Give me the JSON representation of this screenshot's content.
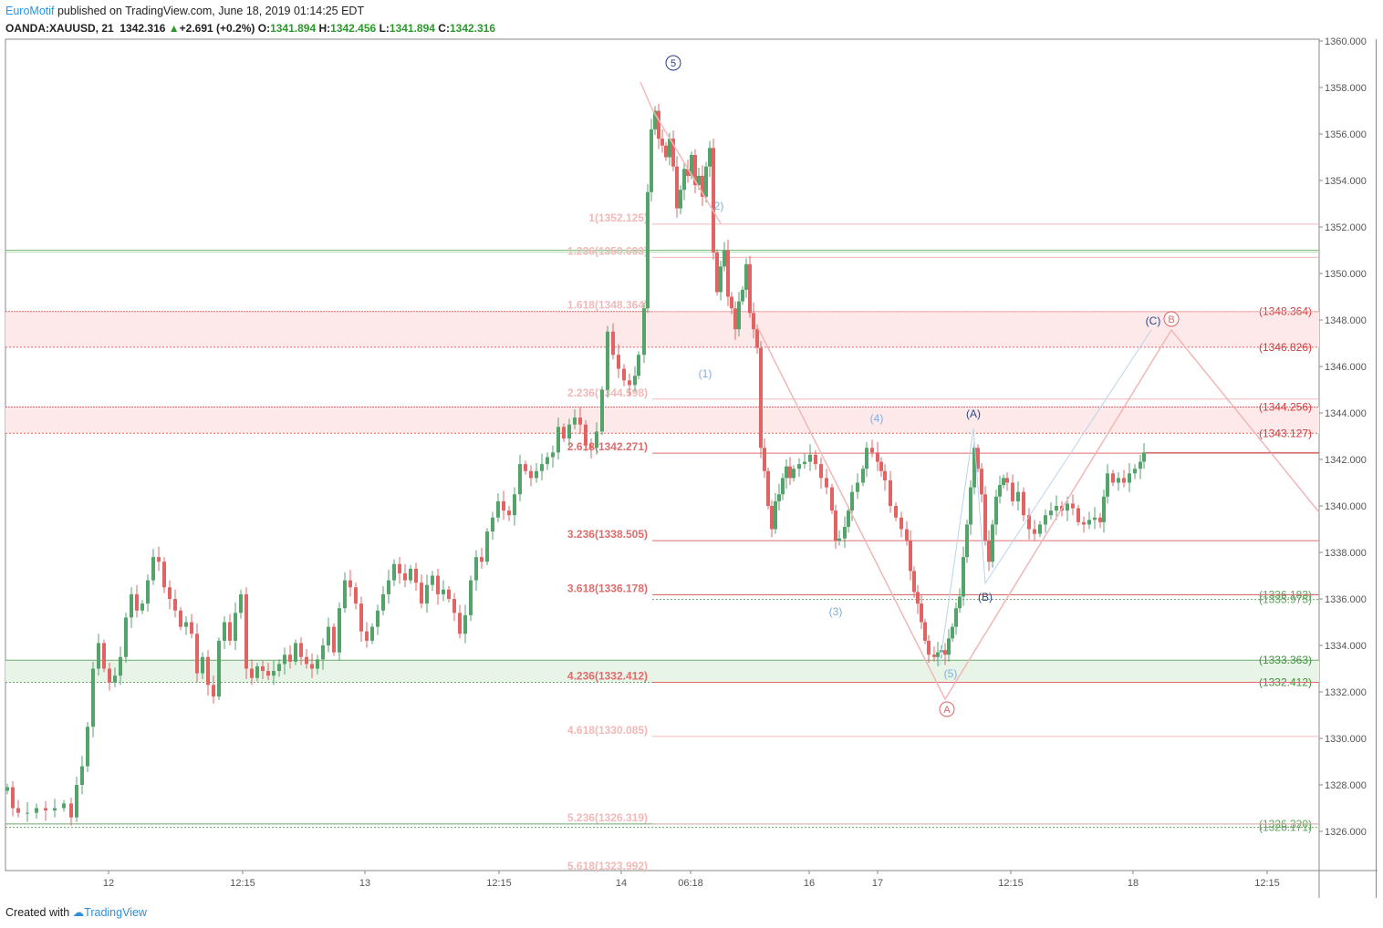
{
  "header": {
    "author": "EuroMotif",
    "published_text": "published on TradingView.com, June 18, 2019 01:14:25 EDT",
    "symbol": "OANDA:XAUUSD, 21",
    "last": "1342.316",
    "change": "+2.691 (+0.2%)",
    "o_label": "O:",
    "o_val": "1341.894",
    "h_label": "H:",
    "h_val": "1342.456",
    "l_label": "L:",
    "l_val": "1341.894",
    "c_label": "C:",
    "c_val": "1342.316"
  },
  "footer": {
    "created_with": "Created with",
    "brand": "TradingView"
  },
  "chart_data": {
    "type": "candlestick",
    "title": "",
    "y_range": [
      1323.2,
      1360.6
    ],
    "y_ticks": [
      "1360.000",
      "1358.000",
      "1356.000",
      "1354.000",
      "1352.000",
      "1350.000",
      "1348.000",
      "1346.000",
      "1344.000",
      "1342.000",
      "1340.000",
      "1338.000",
      "1336.000",
      "1334.000",
      "1332.000",
      "1330.000",
      "1328.000",
      "1326.000"
    ],
    "x_ticks": [
      "12",
      "12:15",
      "13",
      "12:15",
      "14",
      "06:18",
      "16",
      "17",
      "12:15",
      "18",
      "12:15"
    ],
    "colors": {
      "up": "#53a36b",
      "down": "#e06464",
      "fib": "#e06b6b",
      "fib_faint": "#f2b8b8",
      "support": "#6aab6a",
      "wave_light": "#7faee3",
      "wave_dark": "#2a4a8a"
    },
    "close_path": [
      [
        8,
        1327.9
      ],
      [
        14,
        1327.0
      ],
      [
        20,
        1326.8
      ],
      [
        30,
        1326.8
      ],
      [
        40,
        1327.0
      ],
      [
        50,
        1326.9
      ],
      [
        60,
        1327.0
      ],
      [
        70,
        1327.2
      ],
      [
        78,
        1326.6
      ],
      [
        84,
        1328.0
      ],
      [
        90,
        1328.8
      ],
      [
        96,
        1330.5
      ],
      [
        102,
        1333.0
      ],
      [
        108,
        1334.1
      ],
      [
        114,
        1333.0
      ],
      [
        120,
        1332.4
      ],
      [
        126,
        1332.7
      ],
      [
        132,
        1333.5
      ],
      [
        138,
        1335.2
      ],
      [
        144,
        1336.2
      ],
      [
        150,
        1335.5
      ],
      [
        156,
        1335.8
      ],
      [
        162,
        1336.8
      ],
      [
        168,
        1337.8
      ],
      [
        174,
        1337.6
      ],
      [
        180,
        1336.5
      ],
      [
        186,
        1336.0
      ],
      [
        192,
        1335.5
      ],
      [
        198,
        1334.8
      ],
      [
        204,
        1335.0
      ],
      [
        210,
        1334.5
      ],
      [
        216,
        1332.8
      ],
      [
        222,
        1333.5
      ],
      [
        228,
        1332.3
      ],
      [
        234,
        1331.8
      ],
      [
        240,
        1334.2
      ],
      [
        246,
        1335.0
      ],
      [
        252,
        1334.2
      ],
      [
        258,
        1335.4
      ],
      [
        264,
        1336.2
      ],
      [
        270,
        1333.0
      ],
      [
        276,
        1332.6
      ],
      [
        282,
        1333.1
      ],
      [
        288,
        1332.9
      ],
      [
        294,
        1332.7
      ],
      [
        300,
        1332.9
      ],
      [
        306,
        1333.2
      ],
      [
        312,
        1333.6
      ],
      [
        318,
        1333.3
      ],
      [
        324,
        1334.1
      ],
      [
        330,
        1333.5
      ],
      [
        336,
        1333.2
      ],
      [
        342,
        1333.0
      ],
      [
        348,
        1333.4
      ],
      [
        354,
        1334.0
      ],
      [
        360,
        1334.8
      ],
      [
        366,
        1333.7
      ],
      [
        372,
        1335.6
      ],
      [
        378,
        1336.8
      ],
      [
        384,
        1336.5
      ],
      [
        390,
        1335.8
      ],
      [
        396,
        1334.6
      ],
      [
        402,
        1334.2
      ],
      [
        408,
        1334.8
      ],
      [
        414,
        1335.5
      ],
      [
        420,
        1336.2
      ],
      [
        426,
        1336.8
      ],
      [
        432,
        1337.5
      ],
      [
        438,
        1337.1
      ],
      [
        444,
        1336.8
      ],
      [
        450,
        1337.3
      ],
      [
        456,
        1336.7
      ],
      [
        462,
        1335.8
      ],
      [
        468,
        1336.6
      ],
      [
        474,
        1337.0
      ],
      [
        480,
        1336.2
      ],
      [
        486,
        1336.4
      ],
      [
        492,
        1336.0
      ],
      [
        498,
        1335.4
      ],
      [
        504,
        1334.5
      ],
      [
        510,
        1335.3
      ],
      [
        516,
        1336.8
      ],
      [
        522,
        1337.8
      ],
      [
        528,
        1337.6
      ],
      [
        534,
        1338.9
      ],
      [
        540,
        1339.5
      ],
      [
        546,
        1340.2
      ],
      [
        552,
        1339.8
      ],
      [
        558,
        1339.6
      ],
      [
        564,
        1340.5
      ],
      [
        570,
        1341.8
      ],
      [
        576,
        1341.5
      ],
      [
        582,
        1341.2
      ],
      [
        588,
        1341.5
      ],
      [
        594,
        1341.8
      ],
      [
        600,
        1342.1
      ],
      [
        606,
        1342.3
      ],
      [
        612,
        1343.4
      ],
      [
        618,
        1342.9
      ],
      [
        624,
        1343.5
      ],
      [
        630,
        1343.8
      ],
      [
        636,
        1343.5
      ],
      [
        642,
        1342.6
      ],
      [
        648,
        1342.5
      ],
      [
        654,
        1343.2
      ],
      [
        660,
        1345.0
      ],
      [
        666,
        1347.5
      ],
      [
        672,
        1346.5
      ],
      [
        678,
        1345.9
      ],
      [
        684,
        1345.4
      ],
      [
        690,
        1345.2
      ],
      [
        696,
        1345.6
      ],
      [
        700,
        1346.5
      ],
      [
        706,
        1348.5
      ],
      [
        710,
        1353.5
      ],
      [
        714,
        1356.2
      ],
      [
        718,
        1357.0
      ],
      [
        722,
        1355.8
      ],
      [
        726,
        1355.5
      ],
      [
        730,
        1355.0
      ],
      [
        734,
        1355.8
      ],
      [
        738,
        1354.6
      ],
      [
        742,
        1352.8
      ],
      [
        746,
        1353.6
      ],
      [
        750,
        1354.5
      ],
      [
        754,
        1354.2
      ],
      [
        758,
        1355.1
      ],
      [
        762,
        1353.8
      ],
      [
        766,
        1354.2
      ],
      [
        770,
        1353.3
      ],
      [
        774,
        1354.6
      ],
      [
        778,
        1355.4
      ],
      [
        782,
        1350.9
      ],
      [
        786,
        1349.2
      ],
      [
        790,
        1350.3
      ],
      [
        794,
        1351.0
      ],
      [
        798,
        1349.0
      ],
      [
        802,
        1348.5
      ],
      [
        806,
        1347.6
      ],
      [
        810,
        1348.8
      ],
      [
        814,
        1349.3
      ],
      [
        818,
        1350.4
      ],
      [
        822,
        1348.3
      ],
      [
        826,
        1347.6
      ],
      [
        830,
        1346.8
      ],
      [
        834,
        1342.5
      ],
      [
        838,
        1341.5
      ],
      [
        842,
        1340.0
      ],
      [
        846,
        1339.0
      ],
      [
        850,
        1340.2
      ],
      [
        854,
        1340.5
      ],
      [
        858,
        1341.2
      ],
      [
        862,
        1341.7
      ],
      [
        866,
        1341.2
      ],
      [
        870,
        1341.6
      ],
      [
        876,
        1341.8
      ],
      [
        882,
        1341.9
      ],
      [
        888,
        1342.2
      ],
      [
        894,
        1341.8
      ],
      [
        900,
        1341.2
      ],
      [
        906,
        1340.8
      ],
      [
        912,
        1339.8
      ],
      [
        916,
        1338.5
      ],
      [
        920,
        1338.6
      ],
      [
        926,
        1339.1
      ],
      [
        930,
        1339.8
      ],
      [
        934,
        1340.6
      ],
      [
        940,
        1341.0
      ],
      [
        946,
        1341.6
      ],
      [
        950,
        1342.5
      ],
      [
        956,
        1342.3
      ],
      [
        962,
        1341.9
      ],
      [
        966,
        1341.5
      ],
      [
        970,
        1341.1
      ],
      [
        976,
        1340.0
      ],
      [
        982,
        1339.5
      ],
      [
        988,
        1339.0
      ],
      [
        994,
        1338.5
      ],
      [
        998,
        1337.2
      ],
      [
        1002,
        1336.3
      ],
      [
        1006,
        1335.8
      ],
      [
        1010,
        1335.0
      ],
      [
        1014,
        1334.2
      ],
      [
        1018,
        1333.6
      ],
      [
        1024,
        1333.5
      ],
      [
        1028,
        1333.7
      ],
      [
        1032,
        1333.8
      ],
      [
        1036,
        1333.6
      ],
      [
        1040,
        1334.3
      ],
      [
        1044,
        1334.8
      ],
      [
        1048,
        1335.6
      ],
      [
        1052,
        1336.1
      ],
      [
        1056,
        1337.8
      ],
      [
        1060,
        1339.2
      ],
      [
        1064,
        1340.8
      ],
      [
        1068,
        1342.5
      ],
      [
        1072,
        1341.6
      ],
      [
        1076,
        1340.5
      ],
      [
        1080,
        1338.5
      ],
      [
        1084,
        1337.6
      ],
      [
        1088,
        1339.2
      ],
      [
        1092,
        1340.4
      ],
      [
        1096,
        1340.9
      ],
      [
        1100,
        1341.2
      ],
      [
        1104,
        1341.0
      ],
      [
        1110,
        1340.2
      ],
      [
        1116,
        1340.6
      ],
      [
        1122,
        1339.6
      ],
      [
        1128,
        1339.0
      ],
      [
        1134,
        1338.8
      ],
      [
        1140,
        1339.2
      ],
      [
        1146,
        1339.6
      ],
      [
        1152,
        1339.8
      ],
      [
        1158,
        1340.0
      ],
      [
        1164,
        1339.8
      ],
      [
        1170,
        1340.1
      ],
      [
        1176,
        1339.9
      ],
      [
        1182,
        1339.3
      ],
      [
        1188,
        1339.2
      ],
      [
        1194,
        1339.4
      ],
      [
        1200,
        1339.5
      ],
      [
        1206,
        1339.3
      ],
      [
        1210,
        1340.4
      ],
      [
        1214,
        1341.4
      ],
      [
        1220,
        1341.0
      ],
      [
        1226,
        1341.2
      ],
      [
        1232,
        1341.0
      ],
      [
        1238,
        1341.4
      ],
      [
        1244,
        1341.6
      ],
      [
        1250,
        1341.9
      ],
      [
        1254,
        1342.3
      ]
    ],
    "fib_levels": [
      {
        "label": "1(1352.125)",
        "value": 1352.125,
        "faint": true
      },
      {
        "label": "1.236(1350.693)",
        "value": 1350.693,
        "faint": true
      },
      {
        "label": "1.618(1348.364)",
        "value": 1348.364,
        "faint": true
      },
      {
        "label": "2.236(1344.598)",
        "value": 1344.598,
        "faint": true
      },
      {
        "label": "2.618(1342.271)",
        "value": 1342.271,
        "faint": false
      },
      {
        "label": "3.236(1338.505)",
        "value": 1338.505,
        "faint": false
      },
      {
        "label": "3.618(1336.178)",
        "value": 1336.178,
        "faint": false
      },
      {
        "label": "4.236(1332.412)",
        "value": 1332.412,
        "faint": false
      },
      {
        "label": "4.618(1330.085)",
        "value": 1330.085,
        "faint": true
      },
      {
        "label": "5.236(1326.319)",
        "value": 1326.319,
        "faint": true
      },
      {
        "label": "5.618(1323.992)",
        "value": 1323.992,
        "faint": true
      }
    ],
    "zones": [
      {
        "top": 1348.364,
        "bottom": 1346.826,
        "type": "resistance",
        "labels": [
          "(1348.364)",
          "(1346.826)"
        ]
      },
      {
        "top": 1344.256,
        "bottom": 1343.127,
        "type": "resistance",
        "labels": [
          "(1344.256)",
          "(1343.127)"
        ]
      },
      {
        "top": 1333.363,
        "bottom": 1332.412,
        "type": "support",
        "labels": [
          "(1333.363)",
          "(1332.412)"
        ]
      }
    ],
    "support_lines": [
      {
        "value": 1336.183,
        "label": "(1336.183)"
      },
      {
        "value": 1335.975,
        "label": "(1335.975)"
      },
      {
        "value": 1326.32,
        "label": "(1326.320)"
      },
      {
        "value": 1326.171,
        "label": "(1326.171)"
      }
    ],
    "green_line": 1351.0,
    "wave_labels": [
      {
        "text": "5",
        "circled": true,
        "color": "#2a3a8a"
      },
      {
        "text": "2)",
        "color": "#7faee3"
      },
      {
        "text": "(1)",
        "color": "#7faee3"
      },
      {
        "text": "(4)",
        "color": "#7faee3"
      },
      {
        "text": "(3)",
        "color": "#7faee3"
      },
      {
        "text": "(5)",
        "color": "#7faee3"
      },
      {
        "text": "(A)",
        "color": "#2a4a8a"
      },
      {
        "text": "(B)",
        "color": "#2a4a8a"
      },
      {
        "text": "(C)",
        "color": "#2a4a8a"
      },
      {
        "text": "A",
        "circled": true,
        "color": "#e06464"
      },
      {
        "text": "B",
        "circled": true,
        "color": "#e06464"
      }
    ]
  }
}
